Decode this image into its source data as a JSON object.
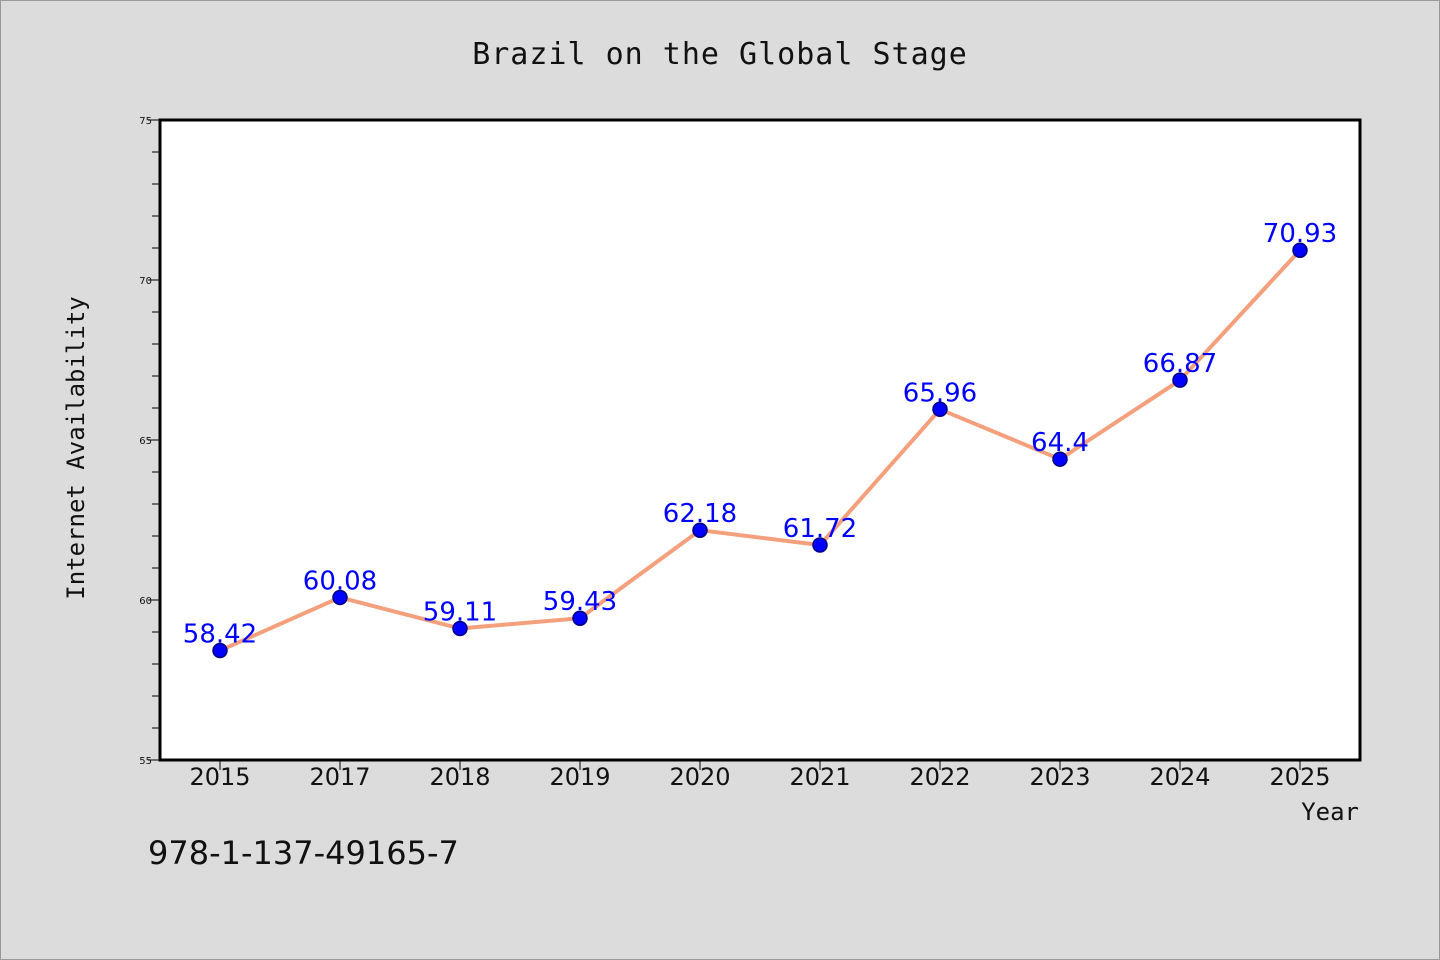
{
  "chart_data": {
    "type": "line",
    "title": "Brazil on the Global Stage",
    "xlabel": "Year",
    "ylabel": "Internet Availability",
    "categories": [
      "2015",
      "2017",
      "2018",
      "2019",
      "2020",
      "2021",
      "2022",
      "2023",
      "2024",
      "2025"
    ],
    "series": [
      {
        "values": [
          58.42,
          60.08,
          59.11,
          59.43,
          62.18,
          61.72,
          65.96,
          64.4,
          66.87,
          70.93
        ],
        "data_labels": [
          "58.42",
          "60.08",
          "59.11",
          "59.43",
          "62.18",
          "61.72",
          "65.96",
          "64.4",
          "66.87",
          "70.93"
        ]
      }
    ],
    "ylim": [
      55,
      75
    ],
    "yticks": [
      "55",
      "60",
      "65",
      "70",
      "75"
    ],
    "grid": false,
    "legend": "none",
    "colors": {
      "line": "#f4a07c",
      "marker": "#0000ff",
      "marker_edge": "#000080",
      "label": "#0000ff",
      "background": "#dcdcdc",
      "plot_background": "#ffffff"
    }
  },
  "footnote": "978-1-137-49165-7"
}
